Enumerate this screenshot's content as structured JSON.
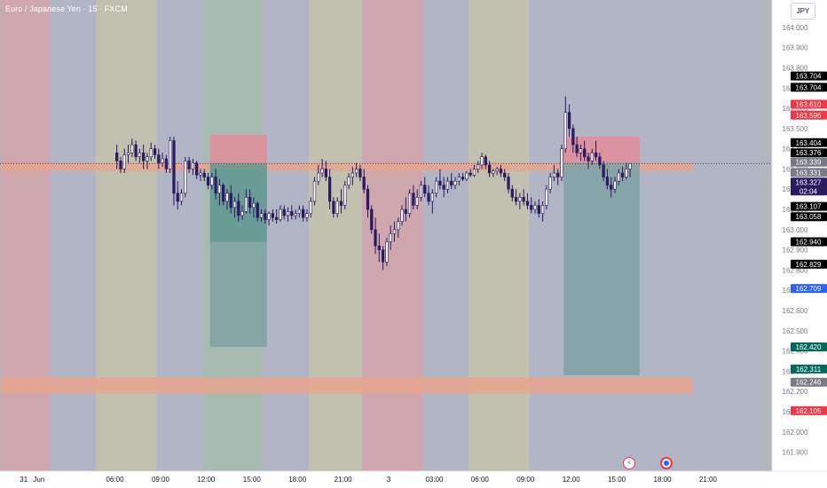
{
  "header": {
    "symbol_title": "Euro / Japanese Yen · 15 · FXCM",
    "currency_button": "JPY"
  },
  "bottom_buttons": {
    "bolt_icon": "lightning-icon",
    "circle_icon": "record-icon"
  },
  "colors": {
    "background": "#b2b5be",
    "up": "#ffffff",
    "down": "#2a1a5e",
    "session_red": "#d4a4ab",
    "session_blue": "#b2b5c7",
    "session_yellow": "#c4c2ab",
    "session_green": "#a6bcb2",
    "sl_zone": "#e28e98",
    "tp_zone": "#7ea2a4",
    "tp_zone_entry": "#5f9792",
    "supply": "#e8a58e"
  },
  "chart_data": {
    "type": "candlestick",
    "title": "Euro / Japanese Yen · 15 · FXCM",
    "ylim": [
      161.88,
      164.12
    ],
    "y_ticks": [
      164.0,
      163.9,
      163.8,
      163.7,
      163.6,
      163.5,
      163.4,
      163.3,
      163.2,
      163.1,
      163.0,
      162.9,
      162.8,
      162.7,
      162.6,
      162.5,
      162.4,
      162.3,
      162.2,
      162.1,
      162.0,
      161.9
    ],
    "y_tick_labels": [
      "164.000",
      "163.900",
      "163.800",
      "163.700",
      "163.600",
      "163.500",
      "163.400",
      "163.300",
      "163.200",
      "163.100",
      "163.000",
      "162.900",
      "162.800",
      "162.700",
      "162.600",
      "162.500",
      "162.400",
      "162.300",
      "162.200",
      "162.100",
      "162.000",
      "161.900"
    ],
    "x_labels": [
      "31",
      "Jun",
      "06:00",
      "09:00",
      "12:00",
      "15:00",
      "18:00",
      "21:00",
      "3",
      "03:00",
      "06:00",
      "09:00",
      "12:00",
      "15:00",
      "18:00",
      "21:00"
    ],
    "x_label_slots": [
      -24,
      -20,
      0,
      12,
      24,
      36,
      48,
      60,
      72,
      84,
      96,
      108,
      120,
      132,
      144,
      156
    ],
    "x_start_slot": -30,
    "x_end_slot": 170,
    "sessions": [
      {
        "from": -30,
        "to": -17,
        "color": "session_red"
      },
      {
        "from": -17,
        "to": -5,
        "color": "session_blue"
      },
      {
        "from": -5,
        "to": 11,
        "color": "session_yellow"
      },
      {
        "from": 11,
        "to": 23,
        "color": "session_blue"
      },
      {
        "from": 23,
        "to": 39,
        "color": "session_green"
      },
      {
        "from": 39,
        "to": 51,
        "color": "session_blue"
      },
      {
        "from": 51,
        "to": 65,
        "color": "session_yellow"
      },
      {
        "from": 65,
        "to": 81,
        "color": "session_red"
      },
      {
        "from": 81,
        "to": 93,
        "color": "session_blue"
      },
      {
        "from": 93,
        "to": 109,
        "color": "session_yellow"
      },
      {
        "from": 109,
        "to": 170,
        "color": "session_blue"
      }
    ],
    "zones": [
      {
        "name": "supply-zone",
        "from": -30,
        "to": 152,
        "top": 163.33,
        "bottom": 163.29,
        "color": "supply"
      },
      {
        "name": "demand-zone",
        "from": -30,
        "to": 152,
        "top": 162.27,
        "bottom": 162.19,
        "color": "supply"
      },
      {
        "name": "short-1-stop-zone",
        "from": 25,
        "to": 40,
        "top": 163.47,
        "bottom": 163.327,
        "color": "sl_zone"
      },
      {
        "name": "short-1-target-entry",
        "from": 25,
        "to": 40,
        "top": 163.327,
        "bottom": 162.94,
        "color": "tp_zone_entry"
      },
      {
        "name": "short-1-target-zone",
        "from": 25,
        "to": 40,
        "top": 162.94,
        "bottom": 162.42,
        "color": "tp_zone"
      },
      {
        "name": "short-2-stop-zone",
        "from": 118,
        "to": 138,
        "top": 163.46,
        "bottom": 163.33,
        "color": "sl_zone"
      },
      {
        "name": "short-2-target-zone",
        "from": 118,
        "to": 138,
        "top": 163.33,
        "bottom": 162.28,
        "color": "tp_zone"
      }
    ],
    "current_price": 163.327,
    "ohlc": [
      [
        163.38,
        163.42,
        163.3,
        163.34
      ],
      [
        163.34,
        163.36,
        163.28,
        163.3
      ],
      [
        163.3,
        163.4,
        163.28,
        163.37
      ],
      [
        163.37,
        163.42,
        163.33,
        163.38
      ],
      [
        163.38,
        163.45,
        163.36,
        163.42
      ],
      [
        163.42,
        163.44,
        163.34,
        163.36
      ],
      [
        163.36,
        163.4,
        163.33,
        163.38
      ],
      [
        163.38,
        163.42,
        163.3,
        163.34
      ],
      [
        163.34,
        163.38,
        163.3,
        163.36
      ],
      [
        163.36,
        163.43,
        163.34,
        163.4
      ],
      [
        163.4,
        163.42,
        163.35,
        163.37
      ],
      [
        163.37,
        163.4,
        163.3,
        163.33
      ],
      [
        163.33,
        163.38,
        163.31,
        163.35
      ],
      [
        163.35,
        163.37,
        163.28,
        163.3
      ],
      [
        163.3,
        163.46,
        163.28,
        163.44
      ],
      [
        163.44,
        163.46,
        163.12,
        163.18
      ],
      [
        163.18,
        163.24,
        163.1,
        163.14
      ],
      [
        163.14,
        163.2,
        163.12,
        163.18
      ],
      [
        163.18,
        163.36,
        163.16,
        163.34
      ],
      [
        163.34,
        163.36,
        163.28,
        163.3
      ],
      [
        163.3,
        163.35,
        163.27,
        163.33
      ],
      [
        163.33,
        163.34,
        163.25,
        163.27
      ],
      [
        163.27,
        163.3,
        163.24,
        163.28
      ],
      [
        163.28,
        163.3,
        163.24,
        163.26
      ],
      [
        163.26,
        163.28,
        163.2,
        163.22
      ],
      [
        163.22,
        163.28,
        163.2,
        163.26
      ],
      [
        163.26,
        163.3,
        163.15,
        163.18
      ],
      [
        163.18,
        163.25,
        163.12,
        163.22
      ],
      [
        163.22,
        163.23,
        163.12,
        163.14
      ],
      [
        163.14,
        163.2,
        163.1,
        163.18
      ],
      [
        163.18,
        163.22,
        163.08,
        163.11
      ],
      [
        163.11,
        163.16,
        163.06,
        163.14
      ],
      [
        163.14,
        163.18,
        163.04,
        163.07
      ],
      [
        163.07,
        163.12,
        163.05,
        163.09
      ],
      [
        163.09,
        163.2,
        163.08,
        163.16
      ],
      [
        163.16,
        163.2,
        163.08,
        163.11
      ],
      [
        163.11,
        163.16,
        163.06,
        163.13
      ],
      [
        163.13,
        163.14,
        163.04,
        163.06
      ],
      [
        163.06,
        163.1,
        163.04,
        163.08
      ],
      [
        163.08,
        163.1,
        163.03,
        163.05
      ],
      [
        163.05,
        163.09,
        163.02,
        163.08
      ],
      [
        163.08,
        163.1,
        163.04,
        163.06
      ],
      [
        163.06,
        163.1,
        163.03,
        163.05
      ],
      [
        163.05,
        163.12,
        163.04,
        163.1
      ],
      [
        163.1,
        163.12,
        163.05,
        163.07
      ],
      [
        163.07,
        163.11,
        163.04,
        163.09
      ],
      [
        163.09,
        163.12,
        163.05,
        163.07
      ],
      [
        163.07,
        163.1,
        163.05,
        163.08
      ],
      [
        163.08,
        163.12,
        163.06,
        163.1
      ],
      [
        163.1,
        163.12,
        163.04,
        163.06
      ],
      [
        163.06,
        163.1,
        163.04,
        163.08
      ],
      [
        163.08,
        163.16,
        163.06,
        163.14
      ],
      [
        163.14,
        163.26,
        163.12,
        163.24
      ],
      [
        163.24,
        163.32,
        163.22,
        163.28
      ],
      [
        163.28,
        163.35,
        163.26,
        163.3
      ],
      [
        163.3,
        163.34,
        163.24,
        163.26
      ],
      [
        163.26,
        163.3,
        163.1,
        163.14
      ],
      [
        163.14,
        163.16,
        163.06,
        163.08
      ],
      [
        163.08,
        163.16,
        163.06,
        163.14
      ],
      [
        163.14,
        163.2,
        163.08,
        163.12
      ],
      [
        163.12,
        163.24,
        163.1,
        163.22
      ],
      [
        163.22,
        163.28,
        163.2,
        163.26
      ],
      [
        163.26,
        163.31,
        163.22,
        163.28
      ],
      [
        163.28,
        163.33,
        163.26,
        163.3
      ],
      [
        163.3,
        163.32,
        163.24,
        163.26
      ],
      [
        163.26,
        163.3,
        163.18,
        163.2
      ],
      [
        163.2,
        163.22,
        163.06,
        163.1
      ],
      [
        163.1,
        163.12,
        162.98,
        163.0
      ],
      [
        163.0,
        163.06,
        162.88,
        162.92
      ],
      [
        162.92,
        162.98,
        162.84,
        162.9
      ],
      [
        162.9,
        162.92,
        162.8,
        162.84
      ],
      [
        162.84,
        162.96,
        162.82,
        162.94
      ],
      [
        162.94,
        163.02,
        162.9,
        162.98
      ],
      [
        162.98,
        163.04,
        162.94,
        163.0
      ],
      [
        163.0,
        163.06,
        162.96,
        163.04
      ],
      [
        163.04,
        163.12,
        163.02,
        163.1
      ],
      [
        163.1,
        163.16,
        163.04,
        163.08
      ],
      [
        163.08,
        163.2,
        163.06,
        163.18
      ],
      [
        163.18,
        163.22,
        163.1,
        163.12
      ],
      [
        163.12,
        163.2,
        163.1,
        163.16
      ],
      [
        163.16,
        163.24,
        163.14,
        163.22
      ],
      [
        163.22,
        163.26,
        163.16,
        163.18
      ],
      [
        163.18,
        163.22,
        163.12,
        163.14
      ],
      [
        163.14,
        163.2,
        163.08,
        163.18
      ],
      [
        163.18,
        163.26,
        163.16,
        163.24
      ],
      [
        163.24,
        163.3,
        163.2,
        163.22
      ],
      [
        163.22,
        163.26,
        163.16,
        163.2
      ],
      [
        163.2,
        163.26,
        163.18,
        163.24
      ],
      [
        163.24,
        163.28,
        163.2,
        163.22
      ],
      [
        163.22,
        163.26,
        163.2,
        163.24
      ],
      [
        163.24,
        163.28,
        163.22,
        163.26
      ],
      [
        163.26,
        163.28,
        163.24,
        163.25
      ],
      [
        163.25,
        163.29,
        163.24,
        163.28
      ],
      [
        163.28,
        163.3,
        163.26,
        163.27
      ],
      [
        163.27,
        163.32,
        163.26,
        163.3
      ],
      [
        163.3,
        163.34,
        163.28,
        163.32
      ],
      [
        163.32,
        163.38,
        163.3,
        163.36
      ],
      [
        163.36,
        163.37,
        163.3,
        163.32
      ],
      [
        163.32,
        163.34,
        163.26,
        163.28
      ],
      [
        163.28,
        163.3,
        163.26,
        163.29
      ],
      [
        163.29,
        163.31,
        163.27,
        163.3
      ],
      [
        163.3,
        163.32,
        163.26,
        163.28
      ],
      [
        163.28,
        163.3,
        163.24,
        163.26
      ],
      [
        163.26,
        163.28,
        163.18,
        163.2
      ],
      [
        163.2,
        163.22,
        163.14,
        163.16
      ],
      [
        163.16,
        163.2,
        163.12,
        163.14
      ],
      [
        163.14,
        163.18,
        163.1,
        163.16
      ],
      [
        163.16,
        163.2,
        163.12,
        163.14
      ],
      [
        163.14,
        163.18,
        163.1,
        163.12
      ],
      [
        163.12,
        163.16,
        163.08,
        163.1
      ],
      [
        163.1,
        163.14,
        163.08,
        163.12
      ],
      [
        163.12,
        163.15,
        163.06,
        163.08
      ],
      [
        163.08,
        163.14,
        163.04,
        163.12
      ],
      [
        163.12,
        163.22,
        163.1,
        163.2
      ],
      [
        163.2,
        163.28,
        163.18,
        163.26
      ],
      [
        163.26,
        163.32,
        163.24,
        163.28
      ],
      [
        163.28,
        163.3,
        163.22,
        163.26
      ],
      [
        163.26,
        163.42,
        163.24,
        163.4
      ],
      [
        163.4,
        163.66,
        163.38,
        163.58
      ],
      [
        163.58,
        163.62,
        163.46,
        163.5
      ],
      [
        163.5,
        163.52,
        163.38,
        163.42
      ],
      [
        163.42,
        163.46,
        163.36,
        163.38
      ],
      [
        163.38,
        163.42,
        163.34,
        163.4
      ],
      [
        163.4,
        163.44,
        163.34,
        163.36
      ],
      [
        163.36,
        163.38,
        163.3,
        163.34
      ],
      [
        163.34,
        163.4,
        163.32,
        163.38
      ],
      [
        163.38,
        163.44,
        163.34,
        163.36
      ],
      [
        163.36,
        163.38,
        163.3,
        163.32
      ],
      [
        163.32,
        163.34,
        163.24,
        163.26
      ],
      [
        163.26,
        163.3,
        163.2,
        163.22
      ],
      [
        163.22,
        163.26,
        163.16,
        163.2
      ],
      [
        163.2,
        163.26,
        163.18,
        163.24
      ],
      [
        163.24,
        163.3,
        163.22,
        163.28
      ],
      [
        163.28,
        163.31,
        163.24,
        163.26
      ],
      [
        163.26,
        163.33,
        163.25,
        163.3
      ],
      [
        163.3,
        163.32,
        163.26,
        163.327
      ]
    ],
    "price_labels": [
      {
        "label": "163.704",
        "price": 163.76,
        "bg": "#000000",
        "fg": "#ffffff"
      },
      {
        "label": "163.704",
        "price": 163.704,
        "bg": "#000000",
        "fg": "#ffffff"
      },
      {
        "label": "163.610",
        "price": 163.62,
        "bg": "#f23645",
        "fg": "#ffffff"
      },
      {
        "label": "163.596",
        "price": 163.566,
        "bg": "#f23645",
        "fg": "#ffffff"
      },
      {
        "label": "163.404",
        "price": 163.43,
        "bg": "#000000",
        "fg": "#ffffff"
      },
      {
        "label": "163.376",
        "price": 163.38,
        "bg": "#000000",
        "fg": "#ffffff"
      },
      {
        "label": "163.339",
        "price": 163.334,
        "bg": "#787b86",
        "fg": "#ffffff"
      },
      {
        "label": "163.331",
        "price": 163.283,
        "bg": "#787b86",
        "fg": "#ffffff"
      },
      {
        "label": "163.327",
        "price": 163.235,
        "bg": "#2a1a5e",
        "fg": "#ffffff",
        "sub": "02:04"
      },
      {
        "label": "163.107",
        "price": 163.115,
        "bg": "#000000",
        "fg": "#ffffff"
      },
      {
        "label": "163.058",
        "price": 163.064,
        "bg": "#000000",
        "fg": "#ffffff"
      },
      {
        "label": "162.940",
        "price": 162.94,
        "bg": "#000000",
        "fg": "#ffffff"
      },
      {
        "label": "162.829",
        "price": 162.829,
        "bg": "#000000",
        "fg": "#ffffff"
      },
      {
        "label": "162.709",
        "price": 162.709,
        "bg": "#2962ff",
        "fg": "#ffffff"
      },
      {
        "label": "162.420",
        "price": 162.42,
        "bg": "#00695c",
        "fg": "#ffffff"
      },
      {
        "label": "162.311",
        "price": 162.311,
        "bg": "#00695c",
        "fg": "#ffffff"
      },
      {
        "label": "162.246",
        "price": 162.246,
        "bg": "#787b86",
        "fg": "#ffffff"
      },
      {
        "label": "162.105",
        "price": 162.105,
        "bg": "#f23645",
        "fg": "#ffffff"
      }
    ]
  }
}
